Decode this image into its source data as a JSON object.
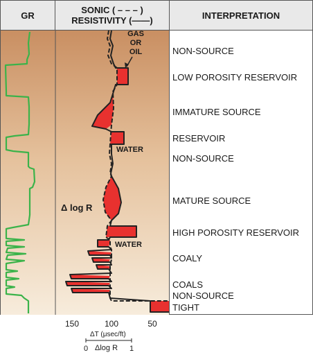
{
  "header": {
    "gr": "GR",
    "sonic_line1": "SONIC ( – – – )",
    "sonic_line2": "RESISTIVITY (——)",
    "interpretation": "INTERPRETATION"
  },
  "annotations": {
    "gas_line1": "GAS",
    "gas_line2": "OR",
    "gas_line3": "OIL",
    "water_upper": "WATER",
    "water_lower": "WATER",
    "delta_log_r": "Δ log R"
  },
  "interpretations": [
    "NON-SOURCE",
    "LOW POROSITY RESERVOIR",
    "IMMATURE SOURCE",
    "RESERVOIR",
    "NON-SOURCE",
    "MATURE SOURCE",
    "HIGH POROSITY RESERVOIR",
    "COALY",
    "COALS",
    "NON-SOURCE",
    "TIGHT"
  ],
  "axis": {
    "ticks": [
      "150",
      "100",
      "50"
    ],
    "delta_t_label": "ΔT (μsec/ft)",
    "log_r_min": "0",
    "log_r_label": "Δlog R",
    "log_r_max": "1"
  },
  "colors": {
    "background_top": "#c98f62",
    "background_bottom": "#f6e8d6",
    "gr_curve": "#3bb34a",
    "separation_fill": "#e8312f",
    "curve": "#222222"
  }
}
